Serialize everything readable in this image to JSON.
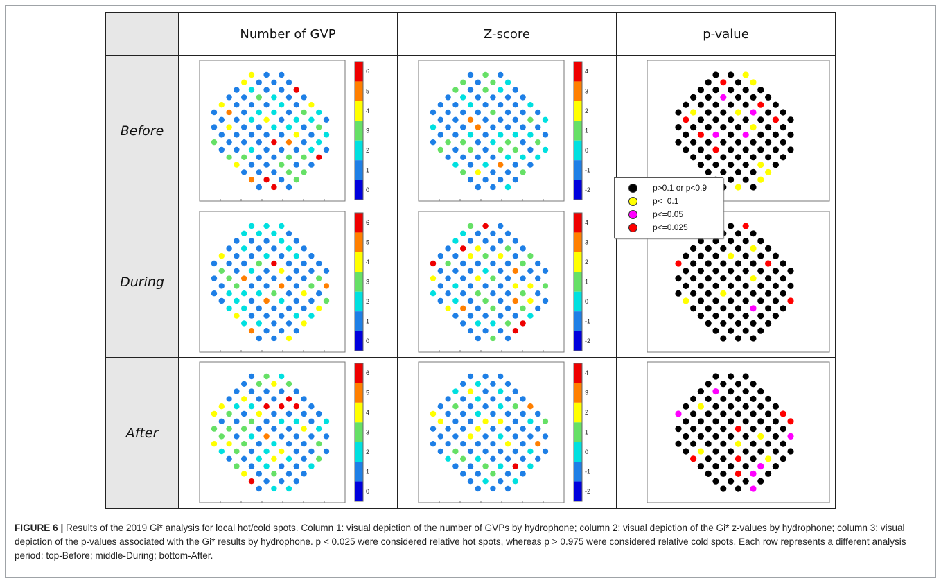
{
  "table": {
    "columns": [
      "Number of GVP",
      "Z-score",
      "p-value"
    ],
    "rows": [
      "Before",
      "During",
      "After"
    ]
  },
  "colorbars": {
    "gvp": {
      "ticks": [
        "6",
        "5",
        "4",
        "3",
        "2",
        "1",
        "0"
      ]
    },
    "z": {
      "ticks": [
        "4",
        "3",
        "2",
        "1",
        "0",
        "-1",
        "-2"
      ]
    },
    "colors": [
      "#ee0000",
      "#ff7f00",
      "#ffff00",
      "#66e066",
      "#00e0e0",
      "#1e7fe6",
      "#0000dd"
    ]
  },
  "legend": {
    "items": [
      {
        "label": "p>0.1 or p<0.9",
        "color": "#000000"
      },
      {
        "label": "p<=0.1",
        "color": "#ffff00"
      },
      {
        "label": "p<=0.05",
        "color": "#ff00ff"
      },
      {
        "label": "p<=0.025",
        "color": "#ff0000"
      }
    ]
  },
  "caption": {
    "label": "FIGURE 6 |",
    "text": " Results of the 2019 Gi* analysis for local hot/cold spots. Column 1: visual depiction of the number of GVPs by hydrophone; column 2: visual depiction of the Gi* z-values by hydrophone; column 3: visual depiction of the p-values associated with the Gi* results by hydrophone. p < 0.025 were considered relative hot spots, whereas p > 0.975 were considered relative cold spots. Each row represents a different analysis period: top-Before; middle-During; bottom-After."
  }
}
